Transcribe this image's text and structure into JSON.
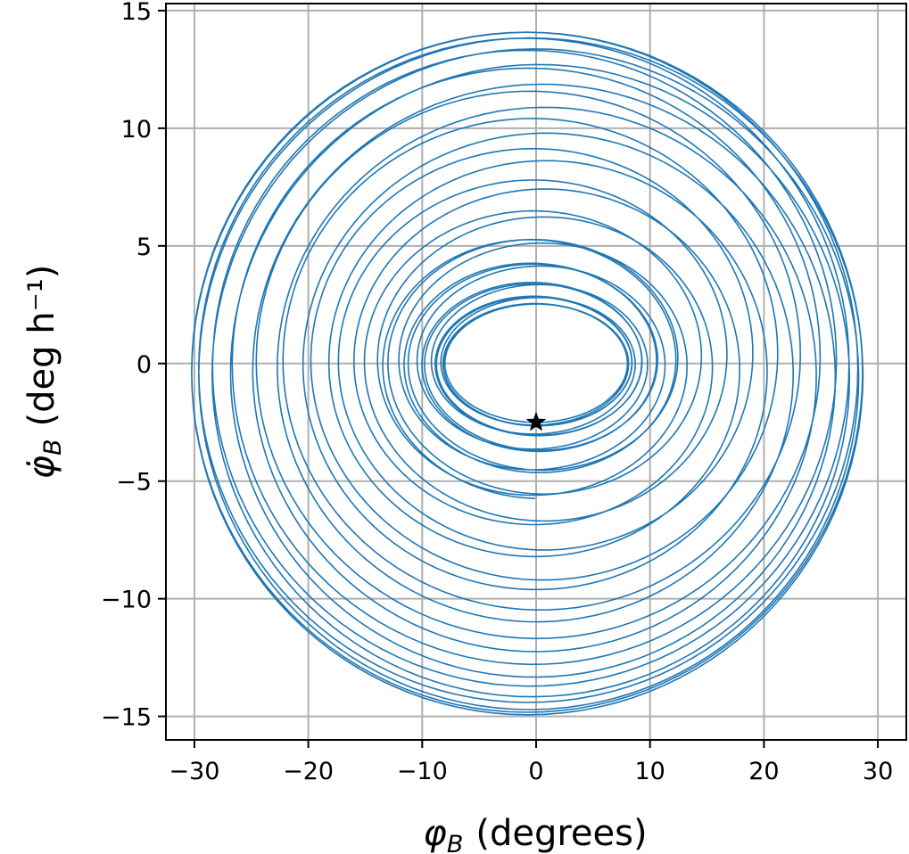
{
  "chart_data": {
    "type": "line",
    "title": "",
    "xlabel": "(degrees)",
    "ylabel": "(deg h⁻¹)",
    "xlabel_symbol": "φ",
    "xlabel_subscript": "B",
    "ylabel_symbol": "φ̇",
    "ylabel_subscript": "B",
    "xlim": [
      -32.5,
      32.5
    ],
    "ylim": [
      -16,
      15.3
    ],
    "x_ticks": [
      -30,
      -20,
      -10,
      0,
      10,
      20,
      30
    ],
    "y_ticks": [
      -15,
      -10,
      -5,
      0,
      5,
      10,
      15
    ],
    "x_tick_labels": [
      "−30",
      "−20",
      "−10",
      "0",
      "10",
      "20",
      "30"
    ],
    "y_tick_labels": [
      "−15",
      "−10",
      "−5",
      "0",
      "5",
      "10",
      "15"
    ],
    "grid": true,
    "series": [
      {
        "kind": "phase-trajectory",
        "color": "#1f77b4",
        "turns": 34,
        "start": {
          "x": 0,
          "y": -2.5
        },
        "amplitude_x_range": [
          8,
          29.5
        ],
        "amplitude_y_range": [
          2.5,
          14.5
        ]
      }
    ],
    "markers": [
      {
        "name": "start-point",
        "symbol": "star",
        "x": 0,
        "y": -2.5,
        "color": "#000000"
      }
    ]
  }
}
